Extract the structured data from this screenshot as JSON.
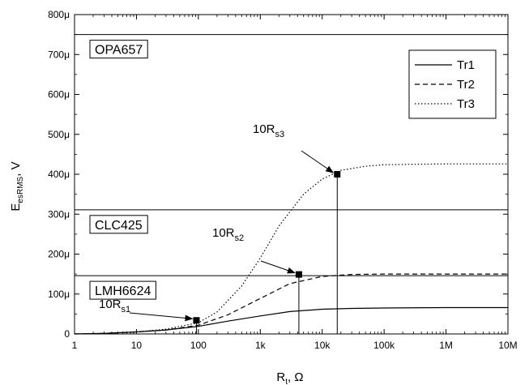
{
  "chart_data": {
    "type": "line",
    "xlabel": "R",
    "xlabel_sub": "t",
    "xlabel_unit": ", Ω",
    "ylabel": "E",
    "ylabel_sub": "esRMS",
    "ylabel_unit": ", V",
    "x_scale": "log",
    "xlim": [
      1,
      10000000
    ],
    "ylim": [
      0,
      0.0008
    ],
    "x_ticks": [
      1,
      10,
      100,
      1000,
      10000,
      100000,
      1000000,
      10000000
    ],
    "x_tick_labels": [
      "1",
      "10",
      "100",
      "1k",
      "10k",
      "100k",
      "1M",
      "10M"
    ],
    "y_ticks": [
      0,
      0.0001,
      0.0002,
      0.0003,
      0.0004,
      0.0005,
      0.0006,
      0.0007,
      0.0008
    ],
    "y_tick_labels": [
      "0",
      "100μ",
      "200μ",
      "300μ",
      "400μ",
      "500μ",
      "600μ",
      "700μ",
      "800μ"
    ],
    "legend_position": "top-right",
    "series": [
      {
        "name": "Tr1",
        "dash": "solid",
        "x": [
          1,
          3,
          10,
          30,
          100,
          300,
          1000,
          3000,
          10000,
          30000,
          100000,
          1000000,
          10000000
        ],
        "y": [
          0,
          1.5e-06,
          5e-06,
          1e-05,
          1.9e-05,
          3.2e-05,
          4.5e-05,
          5.6e-05,
          6.2e-05,
          6.4e-05,
          6.5e-05,
          6.6e-05,
          6.6e-05
        ]
      },
      {
        "name": "Tr2",
        "dash": "dashed",
        "x": [
          1,
          3,
          10,
          30,
          100,
          300,
          1000,
          3000,
          10000,
          30000,
          100000,
          1000000,
          10000000
        ],
        "y": [
          0,
          1.5e-06,
          5e-06,
          1e-05,
          2.2e-05,
          4.8e-05,
          8.9e-05,
          0.000126,
          0.000144,
          0.000149,
          0.00015,
          0.00015,
          0.00015
        ]
      },
      {
        "name": "Tr3",
        "dash": "dotted",
        "x": [
          1,
          3,
          10,
          30,
          100,
          200,
          500,
          1000,
          2000,
          5000,
          10000,
          20000,
          50000,
          100000,
          1000000,
          10000000
        ],
        "y": [
          0,
          1.5e-06,
          5e-06,
          1.2e-05,
          2.8e-05,
          5.5e-05,
          0.00012,
          0.00019,
          0.00027,
          0.00035,
          0.000388,
          0.00041,
          0.00042,
          0.000424,
          0.000426,
          0.000426
        ]
      }
    ],
    "reference_lines": [
      {
        "label": "OPA657",
        "y": 0.00075
      },
      {
        "label": "CLC425",
        "y": 0.000311
      },
      {
        "label": "LMH6624",
        "y": 0.000146
      }
    ],
    "markers": [
      {
        "label": "10R",
        "sub": "s1",
        "x": 93,
        "y": 3.4e-05
      },
      {
        "label": "10R",
        "sub": "s2",
        "x": 4200,
        "y": 0.000149
      },
      {
        "label": "10R",
        "sub": "s3",
        "x": 17500,
        "y": 0.0004
      }
    ]
  }
}
